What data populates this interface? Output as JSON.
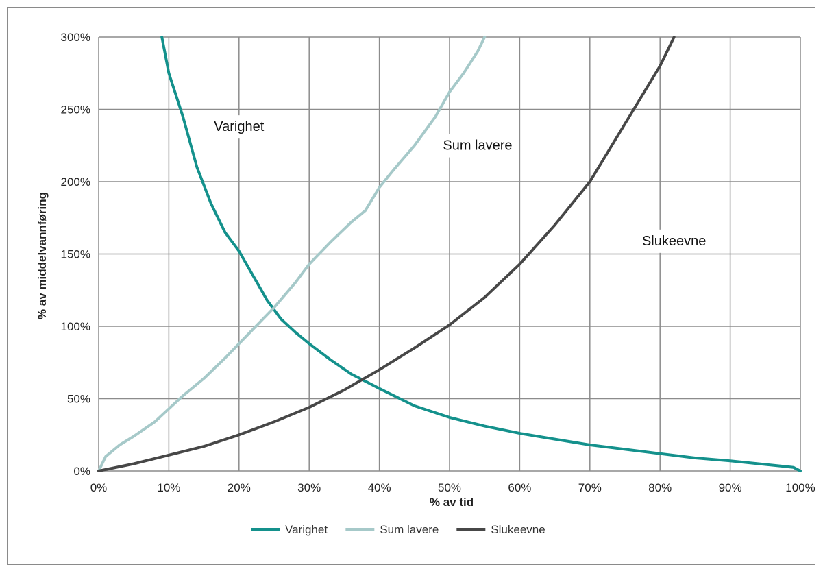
{
  "chart_data": {
    "type": "line",
    "title": "",
    "xlabel": "% av tid",
    "ylabel": "% av middelvannføring",
    "xlim": [
      0,
      100
    ],
    "ylim": [
      0,
      300
    ],
    "x_ticks": [
      "0%",
      "10%",
      "20%",
      "30%",
      "40%",
      "50%",
      "60%",
      "70%",
      "80%",
      "90%",
      "100%"
    ],
    "y_ticks": [
      "0%",
      "50%",
      "100%",
      "150%",
      "200%",
      "250%",
      "300%"
    ],
    "grid": true,
    "legend_position": "bottom",
    "series": [
      {
        "name": "Varighet",
        "color": "#14918c",
        "x": [
          9,
          10,
          12,
          14,
          16,
          18,
          20,
          22,
          24,
          26,
          28,
          30,
          33,
          36,
          40,
          45,
          50,
          55,
          60,
          65,
          70,
          75,
          80,
          85,
          90,
          95,
          99,
          100
        ],
        "y": [
          300,
          275,
          245,
          210,
          185,
          165,
          152,
          135,
          118,
          105,
          96,
          88,
          77,
          67,
          57,
          45,
          37,
          31,
          26,
          22,
          18,
          15,
          12,
          9,
          7,
          4.5,
          2.5,
          0
        ]
      },
      {
        "name": "Sum lavere",
        "color": "#a6c9c9",
        "x": [
          0,
          1,
          3,
          5,
          8,
          10,
          12,
          15,
          18,
          20,
          22,
          25,
          28,
          30,
          33,
          36,
          38,
          40,
          42,
          45,
          48,
          50,
          52,
          54,
          55
        ],
        "y": [
          0,
          10,
          18,
          24,
          34,
          43,
          52,
          64,
          78,
          88,
          98,
          113,
          130,
          143,
          158,
          172,
          180,
          196,
          208,
          225,
          245,
          262,
          275,
          290,
          300
        ]
      },
      {
        "name": "Slukeevne",
        "color": "#474747",
        "x": [
          0,
          5,
          10,
          15,
          20,
          25,
          30,
          35,
          40,
          45,
          50,
          55,
          60,
          65,
          70,
          75,
          80,
          82
        ],
        "y": [
          0,
          5,
          11,
          17,
          25,
          34,
          44,
          56,
          70,
          85,
          101,
          120,
          143,
          170,
          200,
          240,
          280,
          300
        ]
      }
    ],
    "annotations": [
      {
        "text": "Varighet",
        "x": 20,
        "y": 235
      },
      {
        "text": "Sum lavere",
        "x": 54,
        "y": 222
      },
      {
        "text": "Slukeevne",
        "x": 82,
        "y": 156
      }
    ]
  }
}
